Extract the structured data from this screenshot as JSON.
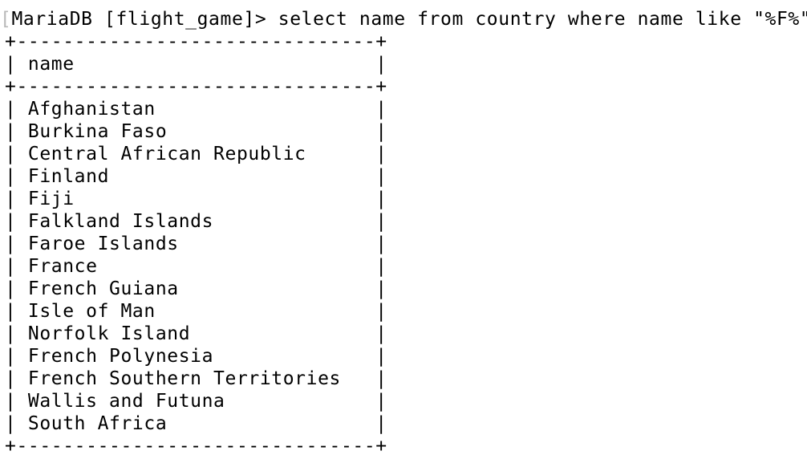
{
  "terminal": {
    "prompt": "MariaDB [flight_game]> ",
    "command": "select name from country where name like \"%F%\";",
    "table": {
      "border": "+-------------------------------+",
      "header": "| name                          |",
      "rows": [
        "| Afghanistan                   |",
        "| Burkina Faso                  |",
        "| Central African Republic      |",
        "| Finland                       |",
        "| Fiji                          |",
        "| Falkland Islands              |",
        "| Faroe Islands                 |",
        "| France                        |",
        "| French Guiana                 |",
        "| Isle of Man                   |",
        "| Norfolk Island                |",
        "| French Polynesia              |",
        "| French Southern Territories   |",
        "| Wallis and Futuna             |",
        "| South Africa                  |"
      ]
    }
  }
}
